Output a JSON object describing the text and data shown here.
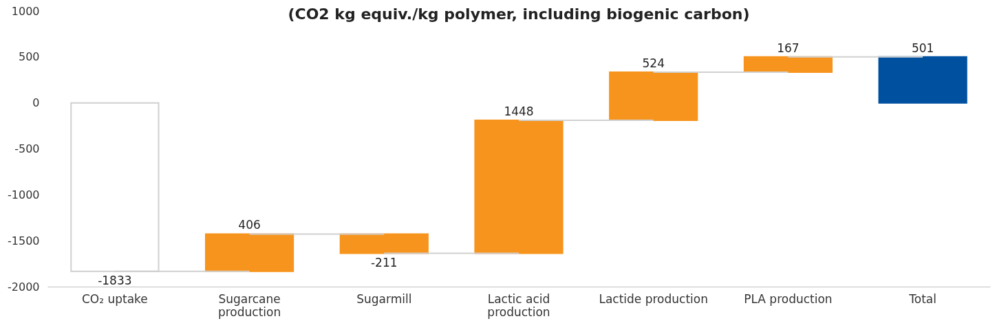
{
  "chart_data": {
    "type": "bar",
    "title": "(CO2 kg equiv./kg polymer, including biogenic carbon)",
    "categories": [
      "CO₂ uptake",
      "Sugarcane\nproduction",
      "Sugarmill",
      "Lactic acid\nproduction",
      "Lactide production",
      "PLA production",
      "Total"
    ],
    "values": [
      -1833,
      406,
      -211,
      1448,
      524,
      167,
      501
    ],
    "base": [
      0,
      -1833,
      -1427,
      -1638,
      -190,
      334,
      0
    ],
    "colors": [
      "#ffffff",
      "#f7941d",
      "#f7941d",
      "#f7941d",
      "#f7941d",
      "#f7941d",
      "#0050a0"
    ],
    "ylim": [
      -2000,
      1000
    ],
    "yticks": [
      -2000,
      -1500,
      -1000,
      -500,
      0,
      500,
      1000
    ],
    "grid": false,
    "data_labels": true
  }
}
